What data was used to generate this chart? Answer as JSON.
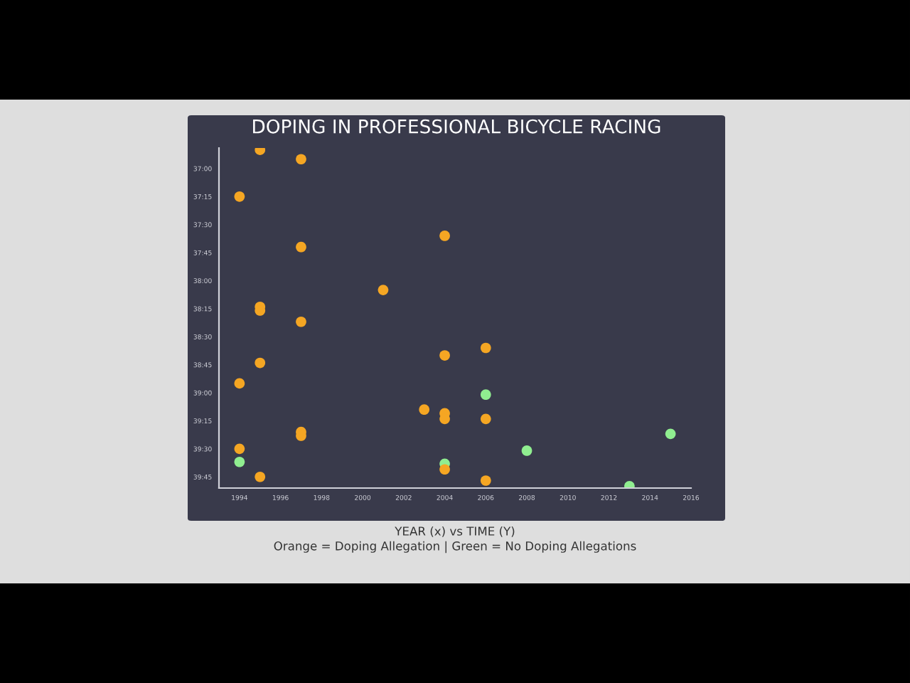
{
  "chart_data": {
    "type": "scatter",
    "title": "DOPING IN PROFESSIONAL BICYCLE RACING",
    "annotations": [
      "YEAR (x) vs TIME (Y)",
      "Orange = Doping Allegation | Green = No Doping Allegations"
    ],
    "series": [
      {
        "color": "#f5a623",
        "x": [
          1995,
          1997,
          1994,
          1997,
          2004,
          2001,
          1995,
          1995,
          1997,
          2004,
          1995,
          1994,
          2003,
          2004,
          2004,
          1997,
          1997,
          1994,
          1995,
          2004,
          2006,
          2006,
          2006
        ],
        "values": [
          2210,
          2215,
          2235,
          2262,
          2256,
          2285,
          2294,
          2296,
          2302,
          2320,
          2324,
          2335,
          2349,
          2351,
          2354,
          2361,
          2363,
          2370,
          2385,
          2381,
          2316,
          2354,
          2387
        ]
      },
      {
        "color": "#90ee90",
        "x": [
          1994,
          2004,
          2006,
          2008,
          2015,
          2013
        ],
        "values": [
          2377,
          2378,
          2341,
          2371,
          2362,
          2390
        ]
      }
    ],
    "xlim": [
      1993,
      2016
    ],
    "xticks": [
      1994,
      1996,
      1998,
      2000,
      2002,
      2004,
      2006,
      2008,
      2010,
      2012,
      2014,
      2016
    ],
    "ylim": [
      2391,
      2209
    ],
    "yticks": [
      {
        "value": 2220,
        "label": "37:00"
      },
      {
        "value": 2235,
        "label": "37:15"
      },
      {
        "value": 2250,
        "label": "37:30"
      },
      {
        "value": 2265,
        "label": "37:45"
      },
      {
        "value": 2280,
        "label": "38:00"
      },
      {
        "value": 2295,
        "label": "38:15"
      },
      {
        "value": 2310,
        "label": "38:30"
      },
      {
        "value": 2325,
        "label": "38:45"
      },
      {
        "value": 2340,
        "label": "39:00"
      },
      {
        "value": 2355,
        "label": "39:15"
      },
      {
        "value": 2370,
        "label": "39:30"
      },
      {
        "value": 2385,
        "label": "39:45"
      }
    ],
    "marker": "circle",
    "grid": false
  }
}
